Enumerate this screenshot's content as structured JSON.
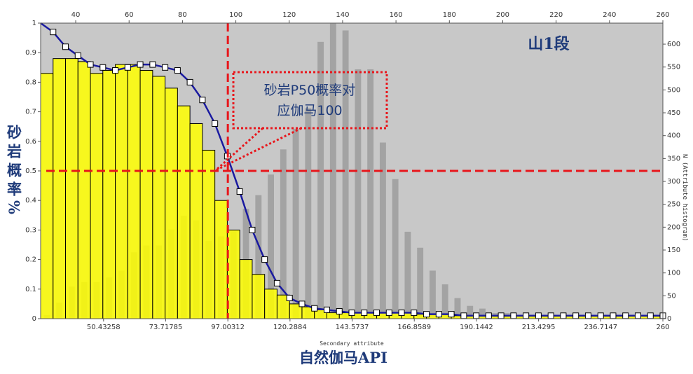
{
  "chart_data": {
    "type": "histogram-probability",
    "title": "山1段",
    "annotation": [
      "砂岩P50概率对",
      "应伽马100"
    ],
    "ylabel": "砂岩概率%",
    "y2label": "N (Attribute histogram)",
    "xlabel_small": "Secondary attribute",
    "xlabel": "自然伽马API",
    "bins": [
      26.86,
      31.52,
      36.19,
      40.85,
      45.51,
      50.17,
      54.84,
      59.5,
      64.16,
      68.83,
      73.49,
      78.15,
      82.81,
      87.48,
      92.14,
      96.8,
      101.46,
      106.13,
      110.79,
      115.45,
      120.12,
      124.78,
      129.44,
      134.1,
      138.77,
      143.43,
      148.09,
      152.76,
      157.42,
      162.08,
      166.74,
      171.41,
      176.07,
      180.73,
      185.4,
      190.06,
      194.72,
      199.38,
      204.05,
      208.71,
      213.37,
      218.04,
      222.7,
      227.36,
      232.02,
      236.69,
      241.35,
      246.01,
      250.67,
      255.34,
      260
    ],
    "probability_bars": {
      "color": "#ffff00",
      "values": [
        0.83,
        0.88,
        0.88,
        0.87,
        0.83,
        0.84,
        0.86,
        0.86,
        0.84,
        0.82,
        0.78,
        0.72,
        0.66,
        0.57,
        0.4,
        0.3,
        0.2,
        0.15,
        0.1,
        0.08,
        0.05,
        0.04,
        0.03,
        0.02,
        0.02,
        0.02,
        0.02,
        0.02,
        0.02,
        0.02,
        0.015,
        0.015,
        0.015,
        0.01,
        0.01,
        0.01,
        0.01,
        0.01,
        0.01,
        0.01,
        0.01,
        0.01,
        0.01,
        0.01,
        0.01,
        0.01,
        0.01,
        0.01,
        0.01,
        0.01
      ]
    },
    "probability_line": {
      "color": "#1a1aa0",
      "values": [
        1.0,
        0.97,
        0.92,
        0.89,
        0.86,
        0.85,
        0.84,
        0.85,
        0.86,
        0.86,
        0.85,
        0.84,
        0.8,
        0.74,
        0.66,
        0.55,
        0.43,
        0.3,
        0.2,
        0.12,
        0.07,
        0.05,
        0.035,
        0.03,
        0.025,
        0.02,
        0.02,
        0.02,
        0.02,
        0.02,
        0.02,
        0.015,
        0.015,
        0.015,
        0.01,
        0.01,
        0.01,
        0.01,
        0.01,
        0.01,
        0.01,
        0.01,
        0.01,
        0.01,
        0.01,
        0.01,
        0.01,
        0.01,
        0.01,
        0.01,
        0.01
      ]
    },
    "histogram": {
      "color": "#a3a3a3",
      "axis": "y2",
      "values": [
        8,
        35,
        70,
        80,
        80,
        90,
        105,
        145,
        160,
        160,
        195,
        225,
        215,
        170,
        180,
        190,
        240,
        270,
        315,
        370,
        415,
        460,
        605,
        645,
        630,
        545,
        545,
        385,
        305,
        190,
        155,
        105,
        75,
        45,
        28,
        22,
        12,
        12,
        8,
        5,
        3,
        2,
        2,
        1,
        1,
        1,
        0,
        0,
        0,
        0
      ]
    },
    "reference_lines": {
      "color": "#e8161b",
      "x": 97.0,
      "y": 0.5
    },
    "xlim": [
      26.86,
      260
    ],
    "xticks": [
      50.43258,
      73.71785,
      97.00312,
      120.2884,
      143.5737,
      166.8589,
      190.1442,
      213.4295,
      236.7147,
      260
    ],
    "x2ticks": [
      40,
      60,
      80,
      100,
      120,
      140,
      160,
      180,
      200,
      220,
      240,
      260
    ],
    "ylim": [
      0,
      1
    ],
    "yticks": [
      0,
      0.1,
      0.2,
      0.3,
      0.4,
      0.5,
      0.6,
      0.7,
      0.8,
      0.9,
      1
    ],
    "y2lim": [
      0,
      646
    ],
    "y2ticks": [
      0,
      50,
      100,
      150,
      200,
      250,
      300,
      350,
      400,
      450,
      500,
      550,
      600
    ]
  }
}
